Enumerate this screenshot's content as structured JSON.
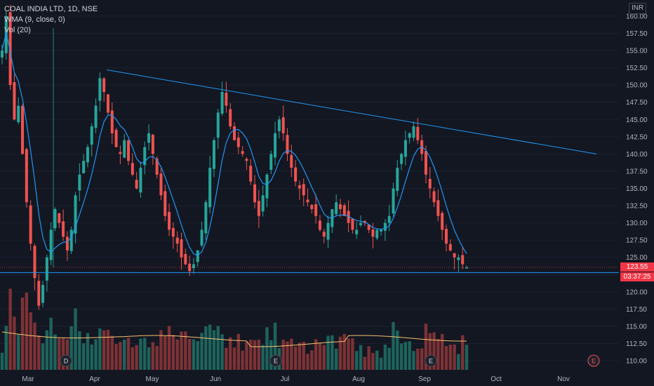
{
  "legend": {
    "symbol_line": "COAL INDIA LTD, 1D, NSE",
    "wma_line": "WMA (9, close, 0)",
    "vol_line": "Vol (20)"
  },
  "currency": "INR",
  "price_scale": {
    "ticks": [
      "160.00",
      "157.50",
      "155.00",
      "152.50",
      "150.00",
      "147.50",
      "145.00",
      "142.50",
      "140.00",
      "137.50",
      "135.00",
      "132.50",
      "130.00",
      "127.50",
      "125.00",
      "122.50",
      "120.00",
      "117.50",
      "115.00",
      "112.50",
      "110.00"
    ],
    "min": 109.5,
    "max": 160.5
  },
  "time_axis": {
    "labels": [
      "Mar",
      "Apr",
      "May",
      "Jun",
      "Jul",
      "Aug",
      "Sep",
      "Oct",
      "Nov"
    ]
  },
  "last_price": {
    "value": "123.55",
    "countdown": "03:37:25"
  },
  "event_markers": [
    "D",
    "E",
    "E",
    "E"
  ],
  "colors": {
    "background": "#131722",
    "up": "#26a69a",
    "down": "#ef5350",
    "wma": "#2196f3",
    "trendline": "#2196f3",
    "vol_ma": "#f5c16c",
    "price_badge": "#f23645"
  },
  "chart_data": {
    "type": "candlestick",
    "x_axis_labels": [
      "Mar",
      "Apr",
      "May",
      "Jun",
      "Jul",
      "Aug",
      "Sep",
      "Oct",
      "Nov"
    ],
    "y_range": [
      109.5,
      160.5
    ],
    "close_series": [
      155,
      160,
      150,
      145,
      147,
      140,
      133,
      127,
      122,
      118,
      121,
      125,
      129,
      132,
      130,
      128,
      126,
      129,
      134,
      137,
      139,
      141,
      144,
      147,
      151,
      149,
      146,
      143,
      141,
      140,
      142,
      139,
      137,
      135,
      138,
      141,
      143,
      140,
      137,
      134,
      131,
      129,
      128,
      127,
      125,
      124,
      123,
      124,
      126,
      129,
      133,
      138,
      142,
      146,
      149,
      147,
      144,
      142,
      141,
      140,
      139,
      136,
      133,
      131,
      134,
      137,
      140,
      143,
      145,
      143,
      140,
      138,
      136,
      135,
      134,
      133,
      132,
      131,
      129,
      128,
      130,
      132,
      133,
      132,
      131,
      130,
      129,
      129,
      130,
      130,
      129,
      128,
      129,
      129,
      130,
      131,
      135,
      138,
      140,
      142,
      143,
      144,
      142,
      140,
      137,
      135,
      133,
      131,
      129,
      127,
      126,
      125,
      125,
      124,
      123.55
    ],
    "trendlines": [
      {
        "name": "",
        "points": [
          [
            0,
            152.2
          ],
          [
            1,
            140.0
          ]
        ]
      },
      {
        "name": "",
        "points": [
          [
            0,
            122.8
          ],
          [
            1,
            122.8
          ]
        ]
      }
    ],
    "volume": {
      "ma_visible": true
    }
  }
}
